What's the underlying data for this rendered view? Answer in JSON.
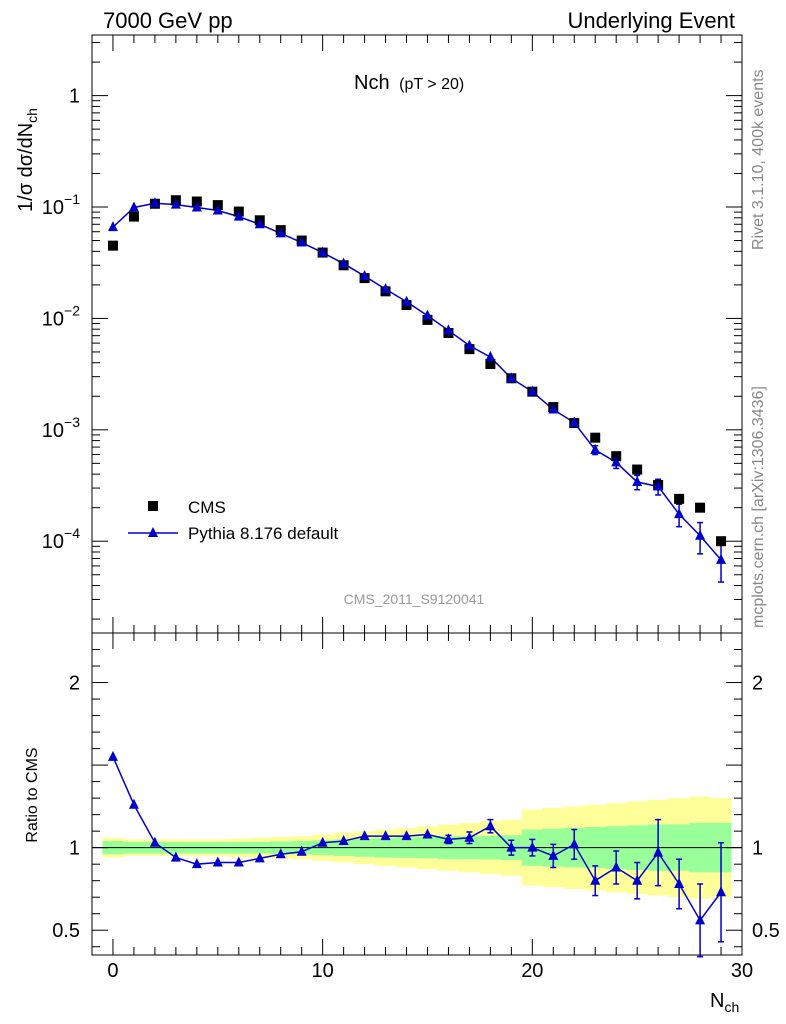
{
  "header": {
    "left": "7000 GeV pp",
    "right": "Underlying Event"
  },
  "side_text": {
    "top": "Rivet 3.1.10,  400k events",
    "bottom": "mcplots.cern.ch [arXiv:1306.3436]"
  },
  "chart_data": [
    {
      "type": "scatter",
      "panel": "main",
      "title": "Nch",
      "title_suffix": "(pT > 20)",
      "watermark": "CMS_2011_S9120041",
      "ylabel": "1/σ dσ/dN",
      "ylabel_sub": "ch",
      "yscale": "log",
      "ylim": [
        1.5e-05,
        3.5
      ],
      "xlim": [
        -1,
        30
      ],
      "ytick_labels": [
        {
          "base": "10",
          "exp": "−4",
          "value": 0.0001
        },
        {
          "base": "10",
          "exp": "−3",
          "value": 0.001
        },
        {
          "base": "10",
          "exp": "−2",
          "value": 0.01
        },
        {
          "base": "10",
          "exp": "−1",
          "value": 0.1
        },
        {
          "base": "1",
          "exp": "",
          "value": 1
        }
      ],
      "legend_position": "bottom-left",
      "series": [
        {
          "name": "CMS",
          "marker": "square",
          "color": "#000000",
          "x": [
            0,
            1,
            2,
            3,
            4,
            5,
            6,
            7,
            8,
            9,
            10,
            11,
            12,
            13,
            14,
            15,
            16,
            17,
            18,
            19,
            20,
            21,
            22,
            23,
            24,
            25,
            26,
            27,
            28,
            29
          ],
          "y": [
            0.045,
            0.082,
            0.107,
            0.115,
            0.112,
            0.104,
            0.091,
            0.076,
            0.062,
            0.05,
            0.039,
            0.03,
            0.023,
            0.0175,
            0.0132,
            0.0097,
            0.0074,
            0.0053,
            0.0039,
            0.0029,
            0.0022,
            0.0016,
            0.00115,
            0.00085,
            0.00058,
            0.00044,
            0.00032,
            0.00024,
            0.0002,
            0.0001
          ]
        },
        {
          "name": "Pythia 8.176 default",
          "marker": "triangle",
          "color": "#0000cc",
          "x": [
            0,
            1,
            2,
            3,
            4,
            5,
            6,
            7,
            8,
            9,
            10,
            11,
            12,
            13,
            14,
            15,
            16,
            17,
            18,
            19,
            20,
            21,
            22,
            23,
            24,
            25,
            26,
            27,
            28,
            29
          ],
          "y": [
            0.066,
            0.099,
            0.108,
            0.105,
            0.099,
            0.093,
            0.082,
            0.07,
            0.058,
            0.048,
            0.039,
            0.031,
            0.024,
            0.0183,
            0.0141,
            0.0106,
            0.0078,
            0.0057,
            0.0045,
            0.0029,
            0.0022,
            0.00152,
            0.00116,
            0.00066,
            0.00051,
            0.00034,
            0.00031,
            0.000175,
            0.000112,
            6.8e-05
          ],
          "yerr": [
            0,
            0,
            0,
            0,
            0,
            0,
            0,
            0,
            0,
            0,
            0,
            0,
            0,
            0,
            0,
            0,
            0,
            0,
            0,
            0,
            0,
            0,
            0,
            6e-05,
            6e-05,
            5e-05,
            5e-05,
            4e-05,
            3.5e-05,
            2.5e-05
          ]
        }
      ]
    },
    {
      "type": "line",
      "panel": "ratio",
      "ylabel": "Ratio to CMS",
      "xlabel": "N",
      "xlabel_sub": "ch",
      "ylim": [
        0.35,
        2.3
      ],
      "xlim": [
        -1,
        30
      ],
      "ytick_labels": [
        "0.5",
        "1",
        "2"
      ],
      "xtick_labels": [
        "0",
        "10",
        "20",
        "30"
      ],
      "band_colors": {
        "inner": "#99ff99",
        "outer": "#ffff99"
      },
      "band_x": [
        -0.5,
        0.5,
        1.5,
        2.5,
        3.5,
        4.5,
        5.5,
        6.5,
        7.5,
        8.5,
        9.5,
        10.5,
        11.5,
        12.5,
        13.5,
        14.5,
        15.5,
        16.5,
        17.5,
        18.5,
        19.5,
        20.5,
        21.5,
        22.5,
        23.5,
        24.5,
        25.5,
        26.5,
        27.5,
        28.5,
        29.5
      ],
      "band_inner": [
        0.04,
        0.035,
        0.035,
        0.035,
        0.035,
        0.035,
        0.035,
        0.035,
        0.038,
        0.04,
        0.045,
        0.05,
        0.055,
        0.06,
        0.062,
        0.065,
        0.07,
        0.07,
        0.072,
        0.075,
        0.11,
        0.115,
        0.12,
        0.125,
        0.13,
        0.135,
        0.14,
        0.14,
        0.15,
        0.15
      ],
      "band_outer": [
        0.06,
        0.05,
        0.05,
        0.05,
        0.05,
        0.05,
        0.055,
        0.06,
        0.065,
        0.07,
        0.08,
        0.09,
        0.1,
        0.11,
        0.12,
        0.13,
        0.14,
        0.15,
        0.16,
        0.17,
        0.23,
        0.24,
        0.25,
        0.26,
        0.27,
        0.28,
        0.29,
        0.3,
        0.31,
        0.3
      ],
      "series": [
        {
          "name": "Pythia 8.176 default",
          "color": "#0000cc",
          "x": [
            0,
            1,
            2,
            3,
            4,
            5,
            6,
            7,
            8,
            9,
            10,
            11,
            12,
            13,
            14,
            15,
            16,
            17,
            18,
            19,
            20,
            21,
            22,
            23,
            24,
            25,
            26,
            27,
            28,
            29
          ],
          "y": [
            1.55,
            1.26,
            1.03,
            0.94,
            0.9,
            0.91,
            0.91,
            0.935,
            0.96,
            0.975,
            1.03,
            1.04,
            1.07,
            1.07,
            1.07,
            1.08,
            1.05,
            1.06,
            1.13,
            1.0,
            1.0,
            0.95,
            1.02,
            0.8,
            0.88,
            0.8,
            0.97,
            0.78,
            0.56,
            0.73
          ],
          "yerr": [
            0,
            0,
            0,
            0,
            0,
            0,
            0,
            0,
            0,
            0,
            0,
            0,
            0,
            0,
            0,
            0,
            0.025,
            0.035,
            0.04,
            0.045,
            0.05,
            0.07,
            0.09,
            0.09,
            0.1,
            0.11,
            0.2,
            0.15,
            0.22,
            0.3
          ]
        }
      ]
    }
  ]
}
